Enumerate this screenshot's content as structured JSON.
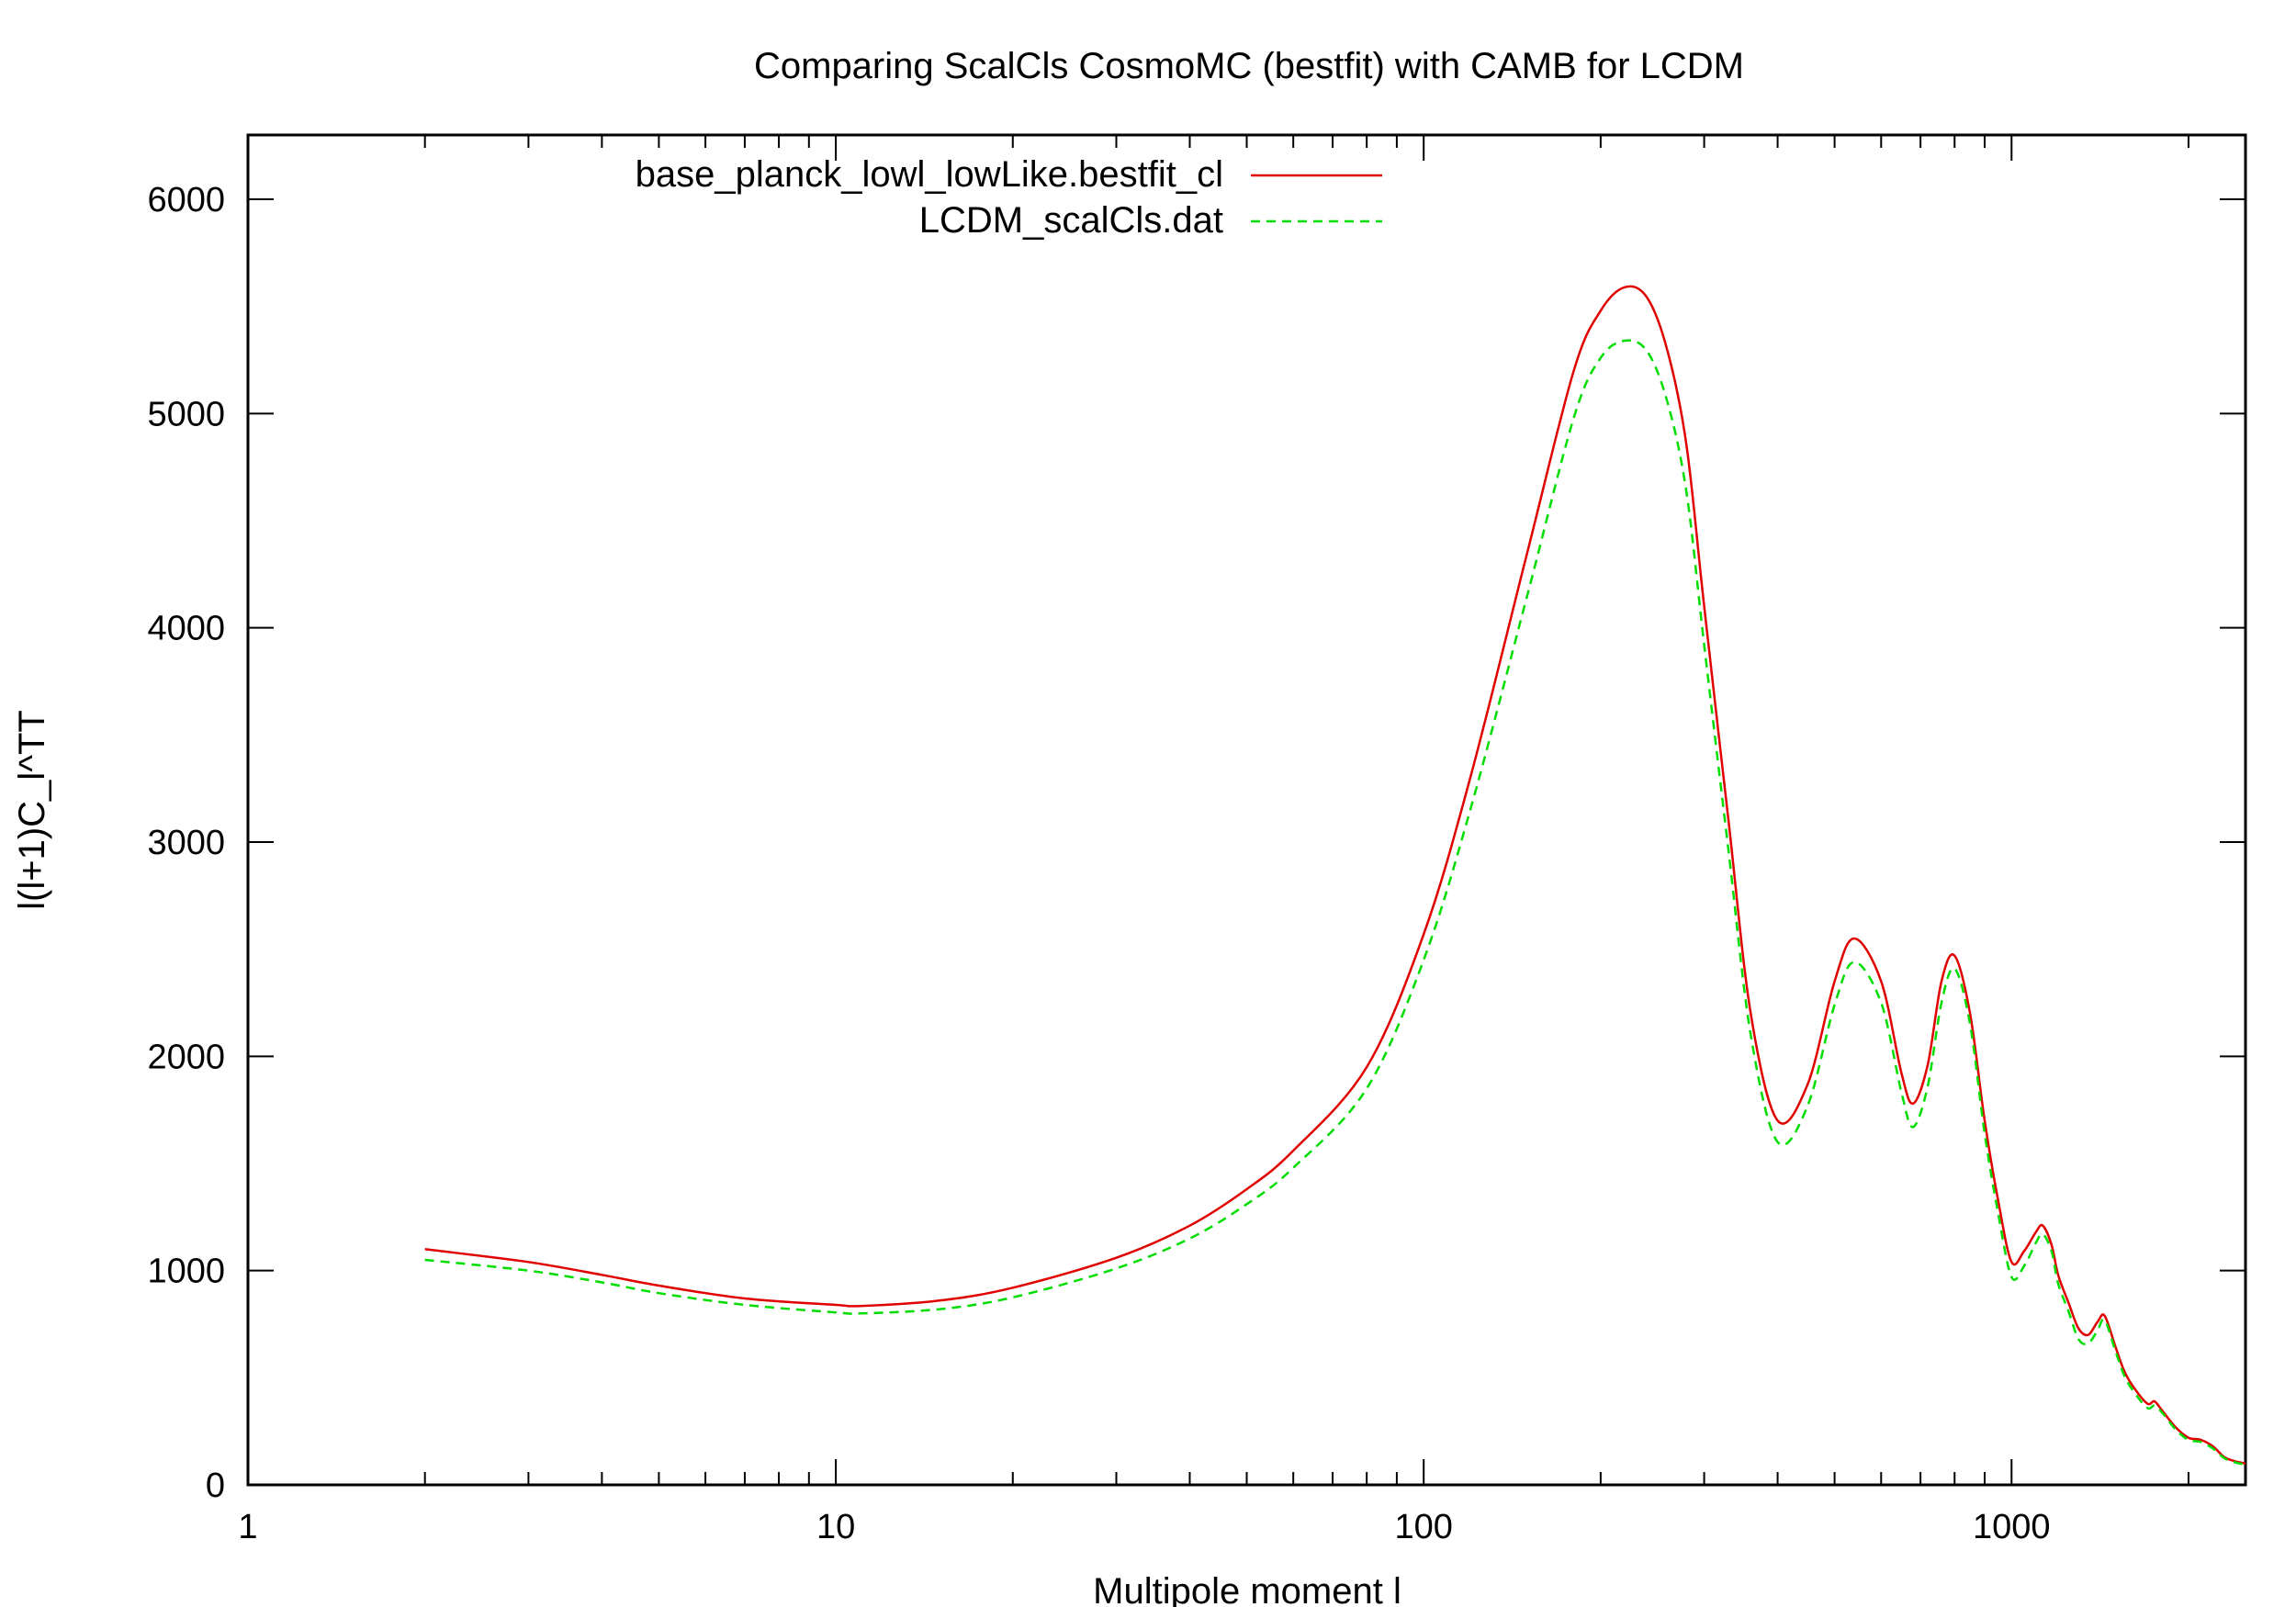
{
  "chart_data": {
    "type": "line",
    "title": "Comparing ScalCls CosmoMC (bestfit) with CAMB for LCDM",
    "xlabel": "Multipole moment l",
    "ylabel": "l(l+1)C_l^TT",
    "x_scale": "log",
    "xlim": [
      1,
      2500
    ],
    "ylim": [
      0,
      6300
    ],
    "grid": false,
    "legend_position": "top-center",
    "x_ticks": [
      {
        "value": 1,
        "label": "1"
      },
      {
        "value": 10,
        "label": "10"
      },
      {
        "value": 100,
        "label": "100"
      },
      {
        "value": 1000,
        "label": "1000"
      }
    ],
    "y_ticks": [
      {
        "value": 0,
        "label": "0"
      },
      {
        "value": 1000,
        "label": "1000"
      },
      {
        "value": 2000,
        "label": "2000"
      },
      {
        "value": 3000,
        "label": "3000"
      },
      {
        "value": 4000,
        "label": "4000"
      },
      {
        "value": 5000,
        "label": "5000"
      },
      {
        "value": 6000,
        "label": "6000"
      }
    ],
    "series": [
      {
        "name": "base_planck_lowl_lowLike.bestfit_cl",
        "color": "#e00000",
        "dash": "solid",
        "x": [
          2,
          3,
          4,
          5,
          7,
          10,
          11,
          15,
          20,
          30,
          40,
          50,
          60,
          80,
          100,
          120,
          150,
          180,
          200,
          220,
          240,
          260,
          280,
          300,
          330,
          360,
          400,
          450,
          500,
          540,
          600,
          650,
          680,
          720,
          760,
          800,
          850,
          900,
          950,
          1000,
          1050,
          1100,
          1130,
          1170,
          1200,
          1250,
          1300,
          1350,
          1400,
          1440,
          1500,
          1550,
          1600,
          1700,
          1750,
          1800,
          1900,
          2000,
          2100,
          2200,
          2300,
          2400,
          2500
        ],
        "y": [
          1100,
          1040,
          980,
          930,
          870,
          840,
          835,
          860,
          920,
          1060,
          1210,
          1380,
          1560,
          1950,
          2570,
          3300,
          4350,
          5200,
          5480,
          5590,
          5540,
          5290,
          4850,
          4100,
          3100,
          2200,
          1700,
          1870,
          2350,
          2550,
          2350,
          1920,
          1780,
          1960,
          2350,
          2470,
          2200,
          1700,
          1320,
          1040,
          1090,
          1180,
          1210,
          1120,
          980,
          850,
          730,
          700,
          760,
          790,
          650,
          540,
          470,
          380,
          390,
          350,
          270,
          220,
          210,
          180,
          130,
          110,
          100
        ]
      },
      {
        "name": "LCDM_scalCls.dat",
        "color": "#00dd00",
        "dash": "dashed",
        "x": [
          2,
          3,
          4,
          5,
          7,
          10,
          11,
          15,
          20,
          30,
          40,
          50,
          60,
          80,
          100,
          120,
          150,
          180,
          200,
          220,
          240,
          260,
          280,
          300,
          330,
          360,
          400,
          450,
          500,
          540,
          600,
          650,
          680,
          720,
          760,
          800,
          850,
          900,
          950,
          1000,
          1050,
          1100,
          1130,
          1170,
          1200,
          1250,
          1300,
          1350,
          1400,
          1440,
          1500,
          1550,
          1600,
          1700,
          1750,
          1800,
          1900,
          2000,
          2100,
          2200,
          2300,
          2400,
          2500
        ],
        "y": [
          1050,
          1000,
          945,
          895,
          840,
          805,
          800,
          820,
          875,
          1010,
          1150,
          1310,
          1480,
          1850,
          2450,
          3150,
          4150,
          4980,
          5260,
          5340,
          5290,
          5050,
          4630,
          3920,
          2960,
          2100,
          1600,
          1770,
          2240,
          2440,
          2250,
          1830,
          1670,
          1860,
          2250,
          2410,
          2150,
          1640,
          1260,
          970,
          1020,
          1130,
          1170,
          1090,
          940,
          810,
          680,
          660,
          720,
          770,
          630,
          520,
          450,
          360,
          370,
          340,
          260,
          210,
          200,
          170,
          125,
          105,
          95
        ]
      }
    ]
  }
}
